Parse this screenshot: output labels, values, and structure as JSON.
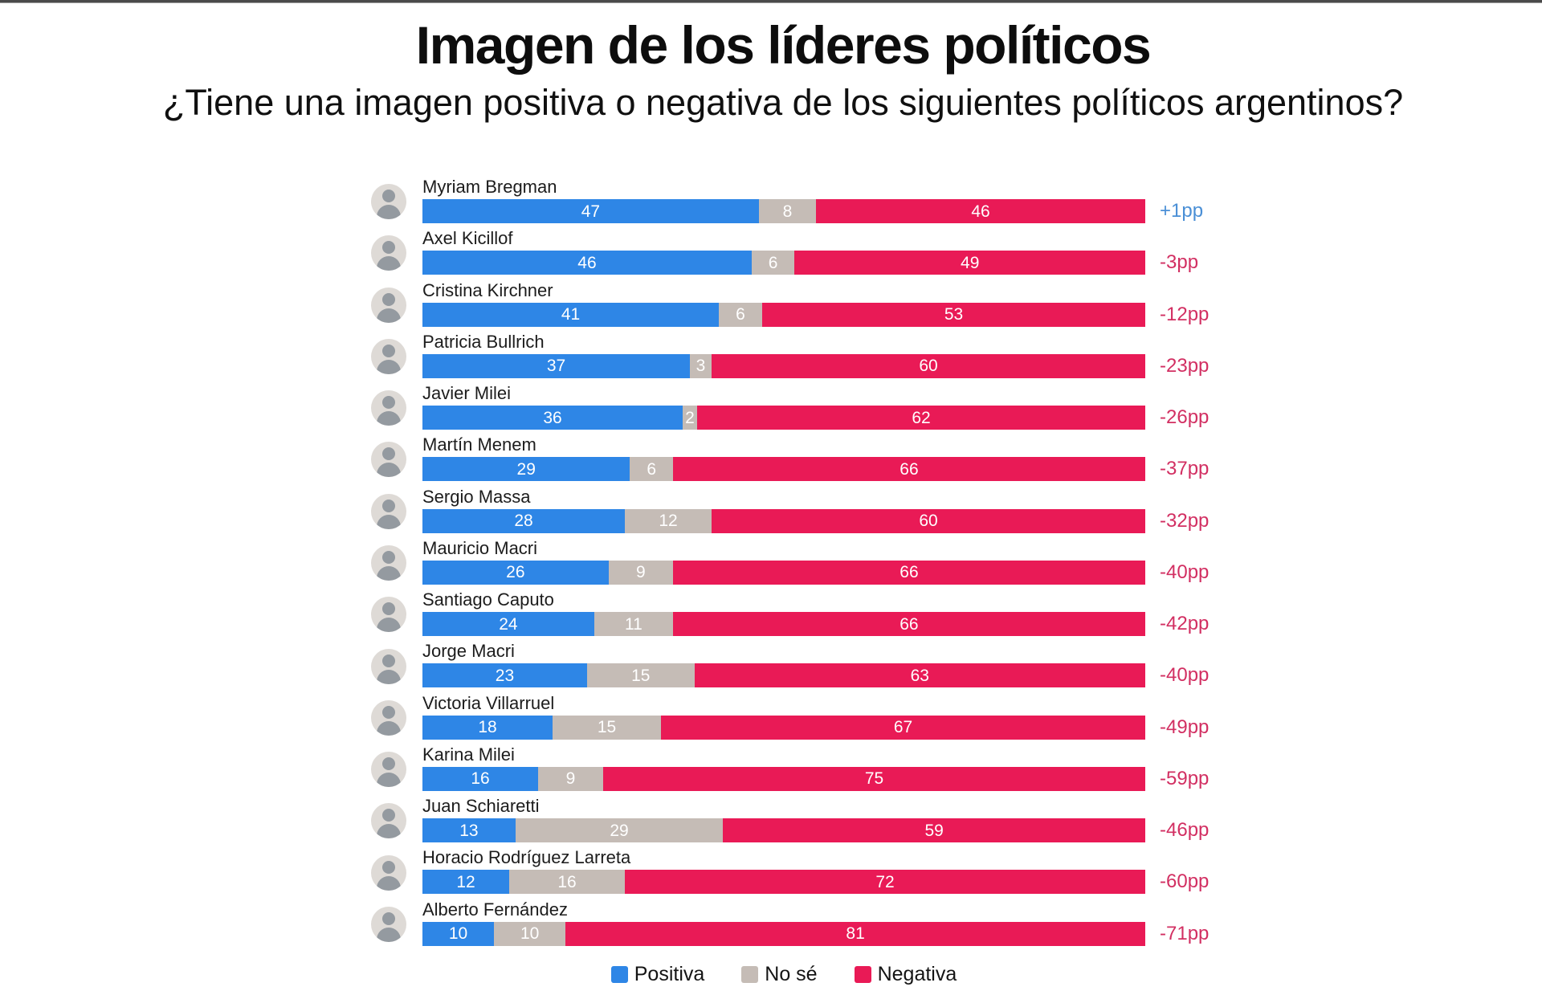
{
  "page": {
    "title": "Imagen de los líderes políticos",
    "subtitle": "¿Tiene una imagen positiva o negativa de los siguientes políticos argentinos?"
  },
  "colors": {
    "positiva": "#2e86e6",
    "no_se": "#c5bcb6",
    "negativa": "#e91a56",
    "diff_positive": "#4a8fd6",
    "diff_negative": "#d22f62"
  },
  "legend": [
    {
      "key": "positiva",
      "label": "Positiva",
      "color": "#2e86e6"
    },
    {
      "key": "no_se",
      "label": "No sé",
      "color": "#c5bcb6"
    },
    {
      "key": "negativa",
      "label": "Negativa",
      "color": "#e91a56"
    }
  ],
  "chart_data": {
    "type": "bar",
    "variant": "horizontal_stacked_100pct",
    "title": "Imagen de los líderes políticos",
    "subtitle": "¿Tiene una imagen positiva o negativa de los siguientes políticos argentinos?",
    "series_names": [
      "Positiva",
      "No sé",
      "Negativa"
    ],
    "legend_position": "bottom",
    "value_unit": "percent",
    "rows": [
      {
        "name": "Myriam Bregman",
        "values": {
          "positiva": 47,
          "no_se": 8,
          "negativa": 46
        },
        "net": "+1pp"
      },
      {
        "name": "Axel Kicillof",
        "values": {
          "positiva": 46,
          "no_se": 6,
          "negativa": 49
        },
        "net": "-3pp"
      },
      {
        "name": "Cristina Kirchner",
        "values": {
          "positiva": 41,
          "no_se": 6,
          "negativa": 53
        },
        "net": "-12pp"
      },
      {
        "name": "Patricia Bullrich",
        "values": {
          "positiva": 37,
          "no_se": 3,
          "negativa": 60
        },
        "net": "-23pp"
      },
      {
        "name": "Javier Milei",
        "values": {
          "positiva": 36,
          "no_se": 2,
          "negativa": 62
        },
        "net": "-26pp"
      },
      {
        "name": "Martín Menem",
        "values": {
          "positiva": 29,
          "no_se": 6,
          "negativa": 66
        },
        "net": "-37pp"
      },
      {
        "name": "Sergio Massa",
        "values": {
          "positiva": 28,
          "no_se": 12,
          "negativa": 60
        },
        "net": "-32pp"
      },
      {
        "name": "Mauricio Macri",
        "values": {
          "positiva": 26,
          "no_se": 9,
          "negativa": 66
        },
        "net": "-40pp"
      },
      {
        "name": "Santiago Caputo",
        "values": {
          "positiva": 24,
          "no_se": 11,
          "negativa": 66
        },
        "net": "-42pp"
      },
      {
        "name": "Jorge Macri",
        "values": {
          "positiva": 23,
          "no_se": 15,
          "negativa": 63
        },
        "net": "-40pp"
      },
      {
        "name": "Victoria Villarruel",
        "values": {
          "positiva": 18,
          "no_se": 15,
          "negativa": 67
        },
        "net": "-49pp"
      },
      {
        "name": "Karina Milei",
        "values": {
          "positiva": 16,
          "no_se": 9,
          "negativa": 75
        },
        "net": "-59pp"
      },
      {
        "name": "Juan Schiaretti",
        "values": {
          "positiva": 13,
          "no_se": 29,
          "negativa": 59
        },
        "net": "-46pp"
      },
      {
        "name": "Horacio Rodríguez Larreta",
        "values": {
          "positiva": 12,
          "no_se": 16,
          "negativa": 72
        },
        "net": "-60pp"
      },
      {
        "name": "Alberto Fernández",
        "values": {
          "positiva": 10,
          "no_se": 10,
          "negativa": 81
        },
        "net": "-71pp"
      }
    ]
  }
}
